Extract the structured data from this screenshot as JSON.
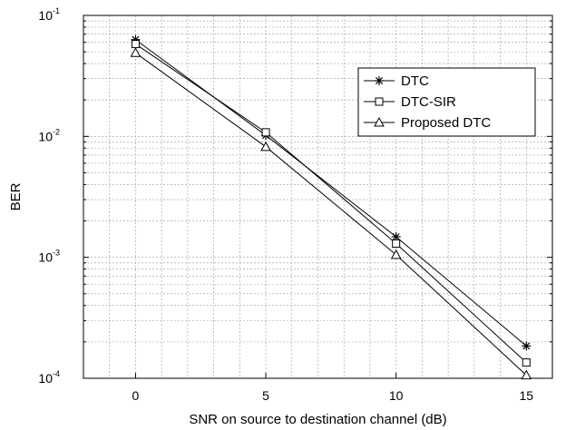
{
  "chart_data": {
    "type": "line",
    "xlabel": "SNR on source to destination channel (dB)",
    "ylabel": "BER",
    "x": [
      0,
      5,
      10,
      15
    ],
    "xlim": [
      -2,
      16
    ],
    "ylim": [
      0.0001,
      0.1
    ],
    "yscale": "log",
    "x_ticks": [
      "0",
      "5",
      "10",
      "15"
    ],
    "y_ticks": [
      {
        "value": 0.1,
        "base": "10",
        "exp": "-1"
      },
      {
        "value": 0.01,
        "base": "10",
        "exp": "-2"
      },
      {
        "value": 0.001,
        "base": "10",
        "exp": "-3"
      },
      {
        "value": 0.0001,
        "base": "10",
        "exp": "-4"
      }
    ],
    "grid": true,
    "legend_position": "top-right",
    "series": [
      {
        "name": "DTC",
        "marker": "asterisk",
        "values": [
          0.063,
          0.0102,
          0.00148,
          0.000185
        ]
      },
      {
        "name": "DTC-SIR",
        "marker": "square",
        "values": [
          0.058,
          0.0108,
          0.0013,
          0.000135
        ]
      },
      {
        "name": "Proposed DTC",
        "marker": "triangle",
        "values": [
          0.049,
          0.0082,
          0.00105,
          0.000106
        ]
      }
    ],
    "colors": {
      "line": "#000000",
      "grid": "#9a9a9a",
      "background": "#ffffff"
    }
  }
}
